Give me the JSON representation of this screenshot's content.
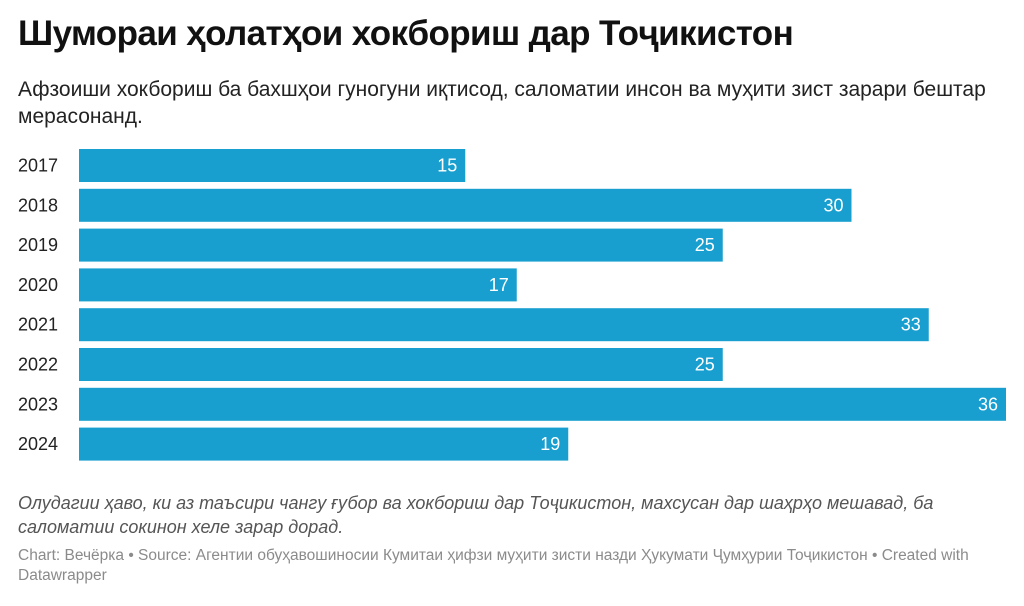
{
  "header": {
    "title": "Шумораи ҳолатҳои хокбориш дар Тоҷикистон",
    "subtitle": "Афзоиши хокбориш ба бахшҳои гуногуни иқтисод, саломатии инсон ва муҳити зист зарари бештар мерасонанд."
  },
  "chart_data": {
    "type": "bar",
    "orientation": "horizontal",
    "categories": [
      "2017",
      "2018",
      "2019",
      "2020",
      "2021",
      "2022",
      "2023",
      "2024"
    ],
    "values": [
      15,
      30,
      25,
      17,
      33,
      25,
      36,
      19
    ],
    "xlim": [
      0,
      36
    ],
    "grid": false,
    "colors": {
      "bar": "#199fcf",
      "value_label": "#ffffff"
    }
  },
  "notes": {
    "text": "Олудагии ҳаво, ки аз таъсири чангу ғубор ва хокбориш дар Тоҷикистон, махсусан дар шаҳрҳо мешавад, ба саломатии сокинон хеле зарар дорад."
  },
  "footer": {
    "text": "Chart: Вечёрка • Source: Агентии обуҳавошиносии Кумитаи ҳифзи муҳити зисти назди Ҳукумати Ҷумҳурии Тоҷикистон • Created with Datawrapper"
  }
}
